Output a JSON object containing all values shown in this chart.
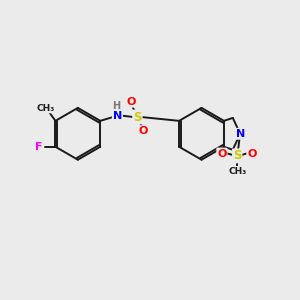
{
  "bg_color": "#ebebeb",
  "bond_color": "#1a1a1a",
  "atom_colors": {
    "F": "#ff00ff",
    "N": "#0000ff",
    "O": "#ff0000",
    "S": "#cccc00",
    "H": "#777777",
    "C": "#1a1a1a"
  },
  "figsize": [
    3.0,
    3.0
  ],
  "dpi": 100
}
